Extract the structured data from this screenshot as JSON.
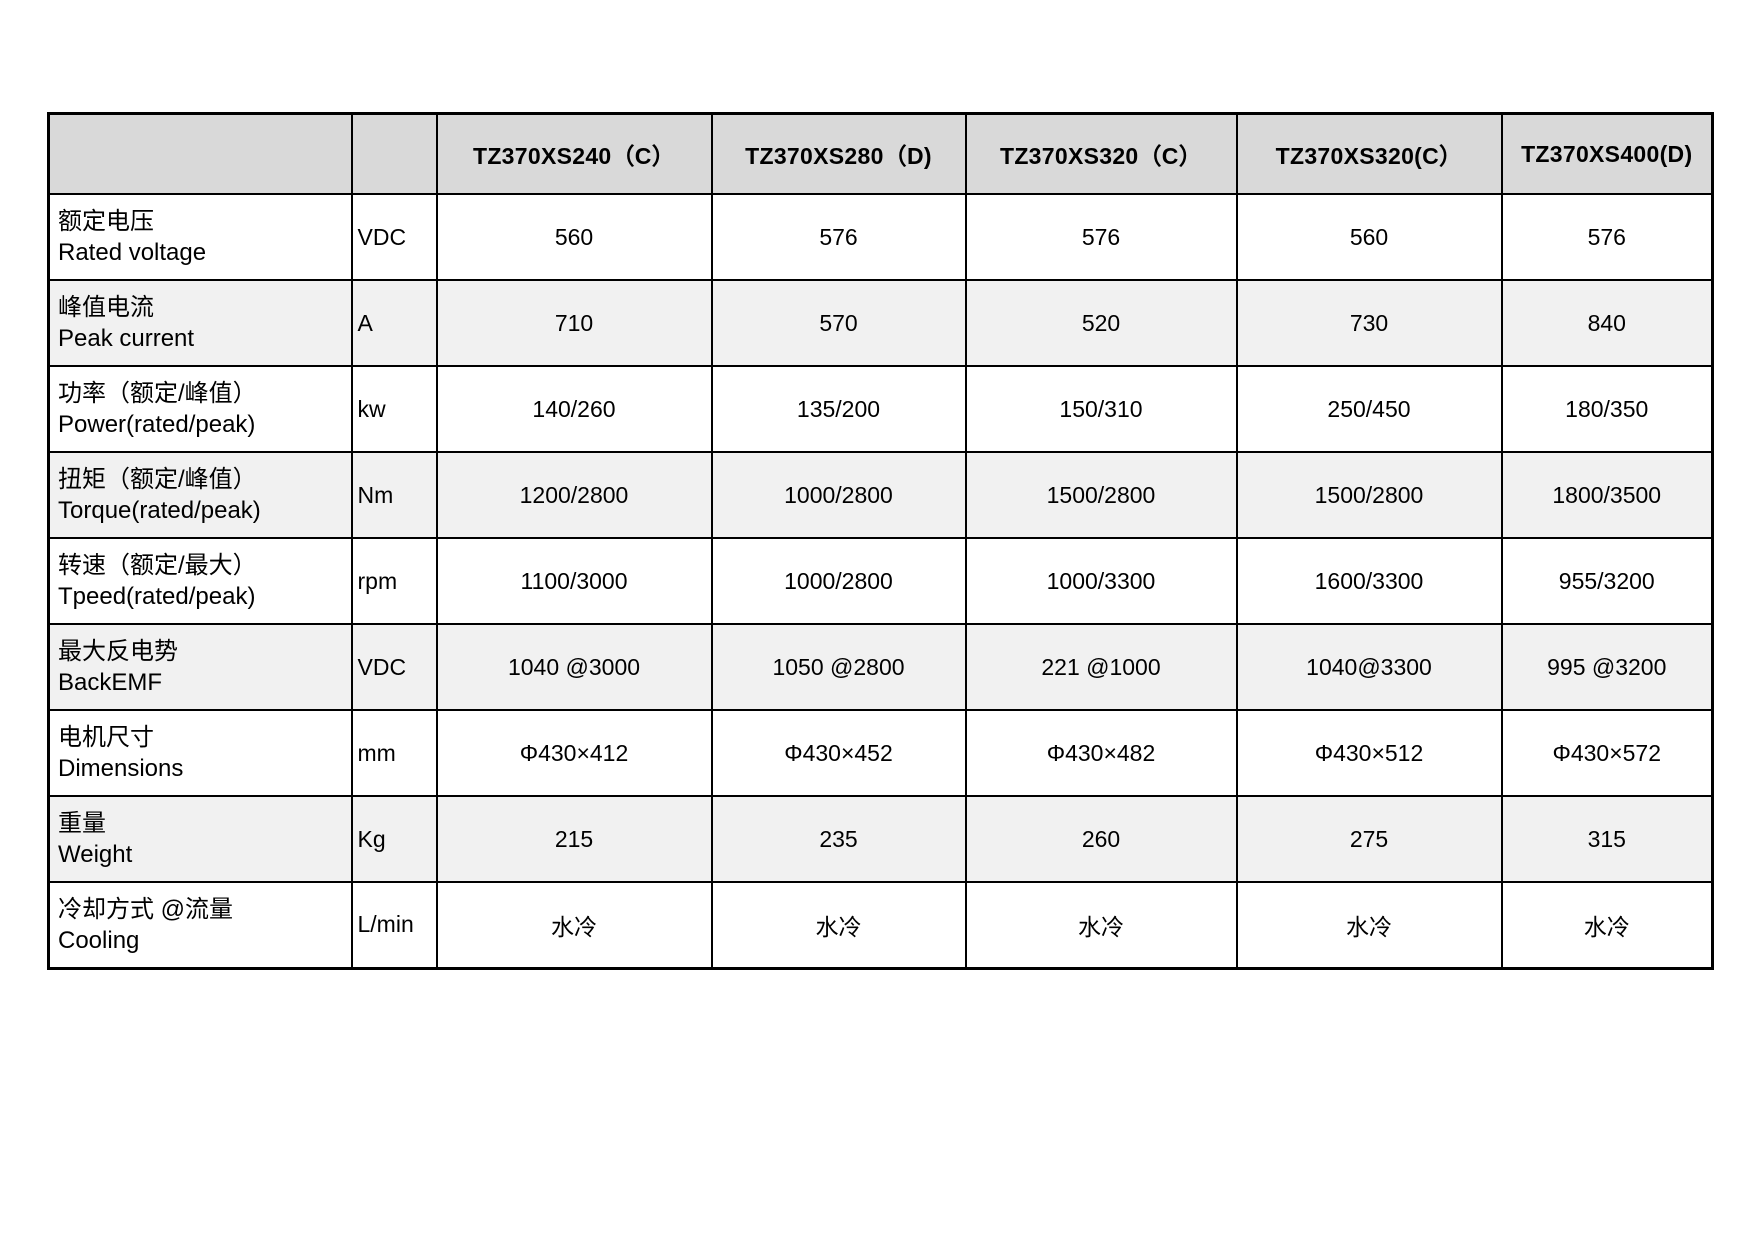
{
  "table": {
    "columns": [
      "",
      "",
      "TZ370XS240（C）",
      "TZ370XS280（D)",
      "TZ370XS320（C）",
      "TZ370XS320(C）",
      "TZ370XS400(D)"
    ],
    "rows": [
      {
        "zh": "额定电压",
        "en": "Rated voltage",
        "unit": "VDC",
        "values": [
          "560",
          "576",
          "576",
          "560",
          "576"
        ]
      },
      {
        "zh": "峰值电流",
        "en": "Peak current",
        "unit": "A",
        "values": [
          "710",
          "570",
          "520",
          "730",
          "840"
        ]
      },
      {
        "zh": "功率（额定/峰值）",
        "en": "Power(rated/peak)",
        "unit": "kw",
        "values": [
          "140/260",
          "135/200",
          "150/310",
          "250/450",
          "180/350"
        ]
      },
      {
        "zh": "扭矩（额定/峰值）",
        "en": "Torque(rated/peak)",
        "unit": "Nm",
        "values": [
          "1200/2800",
          "1000/2800",
          "1500/2800",
          "1500/2800",
          "1800/3500"
        ]
      },
      {
        "zh": "转速（额定/最大）",
        "en": "Tpeed(rated/peak)",
        "unit": "rpm",
        "values": [
          "1100/3000",
          "1000/2800",
          "1000/3300",
          "1600/3300",
          "955/3200"
        ]
      },
      {
        "zh": "最大反电势",
        "en": "BackEMF",
        "unit": "VDC",
        "values": [
          "1040 @3000",
          "1050 @2800",
          "221 @1000",
          "1040@3300",
          "995 @3200"
        ]
      },
      {
        "zh": "电机尺寸",
        "en": "Dimensions",
        "unit": "mm",
        "values": [
          "Φ430×412",
          "Φ430×452",
          "Φ430×482",
          "Φ430×512",
          "Φ430×572"
        ]
      },
      {
        "zh": "重量",
        "en": "Weight",
        "unit": "Kg",
        "values": [
          "215",
          "235",
          "260",
          "275",
          "315"
        ]
      },
      {
        "zh": "冷却方式 @流量",
        "en": "Cooling",
        "unit": "L/min",
        "values": [
          "水冷",
          "水冷",
          "水冷",
          "水冷",
          "水冷"
        ]
      }
    ]
  },
  "colors": {
    "header_bg": "#d9d9d9",
    "stripe_bg": "#f1f1f1",
    "border": "#000000"
  }
}
